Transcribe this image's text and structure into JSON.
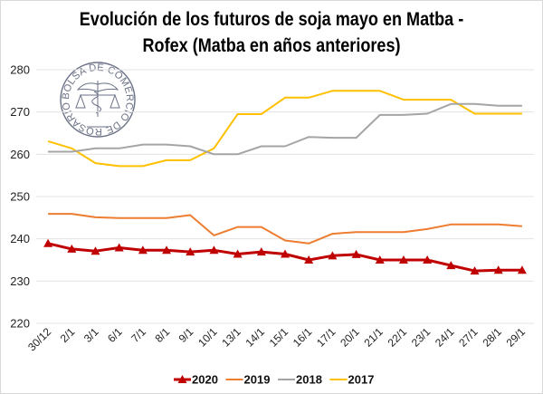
{
  "chart_data": {
    "type": "line",
    "title": "Evolución de los futuros de soja mayo en Matba - Rofex (Matba en años anteriores)",
    "title_lines": [
      "Evolución de los futuros de soja mayo en Matba -",
      "Rofex (Matba en años anteriores)"
    ],
    "xlabel": "",
    "ylabel": "",
    "ylim": [
      220,
      280
    ],
    "yticks": [
      220,
      230,
      240,
      250,
      260,
      270,
      280
    ],
    "grid": true,
    "legend_position": "bottom",
    "categories": [
      "30/12",
      "2/1",
      "3/1",
      "6/1",
      "7/1",
      "8/1",
      "9/1",
      "10/1",
      "13/1",
      "14/1",
      "15/1",
      "16/1",
      "17/1",
      "20/1",
      "21/1",
      "22/1",
      "23/1",
      "24/1",
      "27/1",
      "28/1",
      "29/1"
    ],
    "series": [
      {
        "name": "2020",
        "color": "#c00000",
        "marker": "triangle",
        "values": [
          238.9,
          237.6,
          237.1,
          237.9,
          237.3,
          237.3,
          236.9,
          237.3,
          236.4,
          236.9,
          236.4,
          235.0,
          236.0,
          236.3,
          235.0,
          235.0,
          235.0,
          233.7,
          232.4,
          232.6,
          232.6
        ]
      },
      {
        "name": "2019",
        "color": "#ed7d31",
        "marker": "none",
        "values": [
          245.9,
          245.9,
          245.1,
          244.9,
          244.9,
          244.9,
          245.6,
          240.8,
          242.8,
          242.8,
          239.6,
          238.9,
          241.2,
          241.6,
          241.6,
          241.6,
          242.3,
          243.4,
          243.4,
          243.4,
          243.0
        ]
      },
      {
        "name": "2018",
        "color": "#a5a5a5",
        "marker": "none",
        "values": [
          260.6,
          260.6,
          261.4,
          261.4,
          262.3,
          262.3,
          261.9,
          260.0,
          260.0,
          261.9,
          261.9,
          264.1,
          263.9,
          263.9,
          269.3,
          269.3,
          269.6,
          271.9,
          271.9,
          271.5,
          271.5
        ]
      },
      {
        "name": "2017",
        "color": "#ffc000",
        "marker": "none",
        "values": [
          263.1,
          261.4,
          257.9,
          257.2,
          257.2,
          258.6,
          258.6,
          261.4,
          269.5,
          269.5,
          273.4,
          273.4,
          275.0,
          275.0,
          275.0,
          272.9,
          272.9,
          272.9,
          269.6,
          269.6,
          269.6
        ]
      }
    ]
  },
  "watermark": {
    "text": "BOLSA DE COMERCIO DE ROSARIO",
    "icon": "caduceus-scales-seal-icon",
    "color": "#6b7286"
  },
  "colors": {
    "gridline": "#e3e3e3",
    "border": "#d9d9d9"
  }
}
